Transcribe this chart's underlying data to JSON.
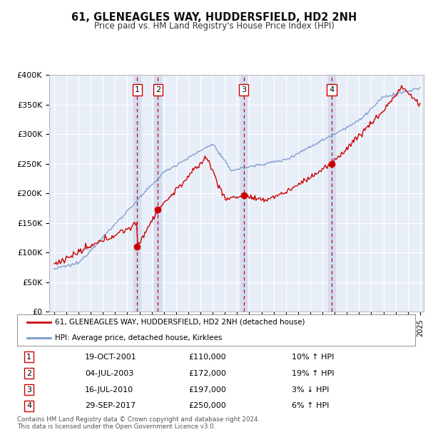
{
  "title": "61, GLENEAGLES WAY, HUDDERSFIELD, HD2 2NH",
  "subtitle": "Price paid vs. HM Land Registry's House Price Index (HPI)",
  "ylim": [
    0,
    400000
  ],
  "yticks": [
    0,
    50000,
    100000,
    150000,
    200000,
    250000,
    300000,
    350000,
    400000
  ],
  "background_color": "#ffffff",
  "plot_bg_color": "#e8eef8",
  "grid_color": "#ffffff",
  "sale_dates_dec": [
    2001.8,
    2003.5,
    2010.54,
    2017.75
  ],
  "sale_prices": [
    110000,
    172000,
    197000,
    250000
  ],
  "sale_labels": [
    "1",
    "2",
    "3",
    "4"
  ],
  "vline_color": "#cc0000",
  "vband_color": "#d0dbf0",
  "sale_dot_color": "#cc0000",
  "hpi_line_color": "#7799cc",
  "price_line_color": "#cc0000",
  "legend_entries": [
    "61, GLENEAGLES WAY, HUDDERSFIELD, HD2 2NH (detached house)",
    "HPI: Average price, detached house, Kirklees"
  ],
  "table_data": [
    [
      "1",
      "19-OCT-2001",
      "£110,000",
      "10% ↑ HPI"
    ],
    [
      "2",
      "04-JUL-2003",
      "£172,000",
      "19% ↑ HPI"
    ],
    [
      "3",
      "16-JUL-2010",
      "£197,000",
      "3% ↓ HPI"
    ],
    [
      "4",
      "29-SEP-2017",
      "£250,000",
      "6% ↑ HPI"
    ]
  ],
  "footer": "Contains HM Land Registry data © Crown copyright and database right 2024.\nThis data is licensed under the Open Government Licence v3.0."
}
